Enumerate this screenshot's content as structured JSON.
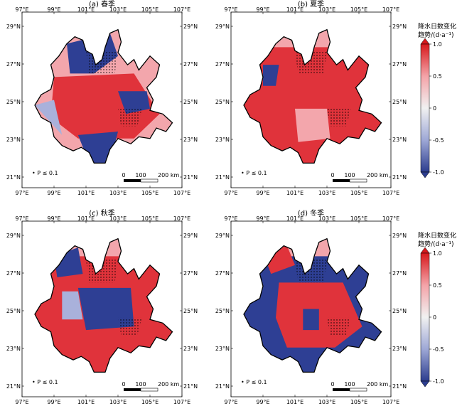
{
  "panels": [
    {
      "id": "a",
      "title": "(a) 春季",
      "season": "spring"
    },
    {
      "id": "b",
      "title": "(b) 夏季",
      "season": "summer"
    },
    {
      "id": "c",
      "title": "(c) 秋季",
      "season": "autumn"
    },
    {
      "id": "d",
      "title": "(d) 冬季",
      "season": "winter"
    }
  ],
  "lon_ticks": [
    "97°E",
    "99°E",
    "101°E",
    "103°E",
    "105°E",
    "107°E"
  ],
  "lat_ticks": [
    "29°N",
    "27°N",
    "25°N",
    "23°N",
    "21°N"
  ],
  "significance_label": "• P ≤ 0.1",
  "scalebar": {
    "labels": [
      "0",
      "100",
      "200 km"
    ]
  },
  "colorbar": {
    "title_line1": "降水日数变化",
    "title_line2": "趋势/(d·a⁻¹)",
    "tick_labels": [
      "1.0",
      "0.5",
      "0",
      "-0.5",
      "-1.0"
    ],
    "tick_values": [
      1.0,
      0.5,
      0,
      -0.5,
      -1.0
    ],
    "colors": {
      "max": "#d7191c",
      "high": "#f4a3a8",
      "mid": "#f1f1f1",
      "low": "#9ea8d6",
      "min": "#2c3d8f"
    }
  },
  "map_colors": {
    "strong_positive": "#e0333b",
    "weak_positive": "#f3a6ac",
    "weak_negative": "#a9b1db",
    "strong_negative": "#2e3f94"
  }
}
